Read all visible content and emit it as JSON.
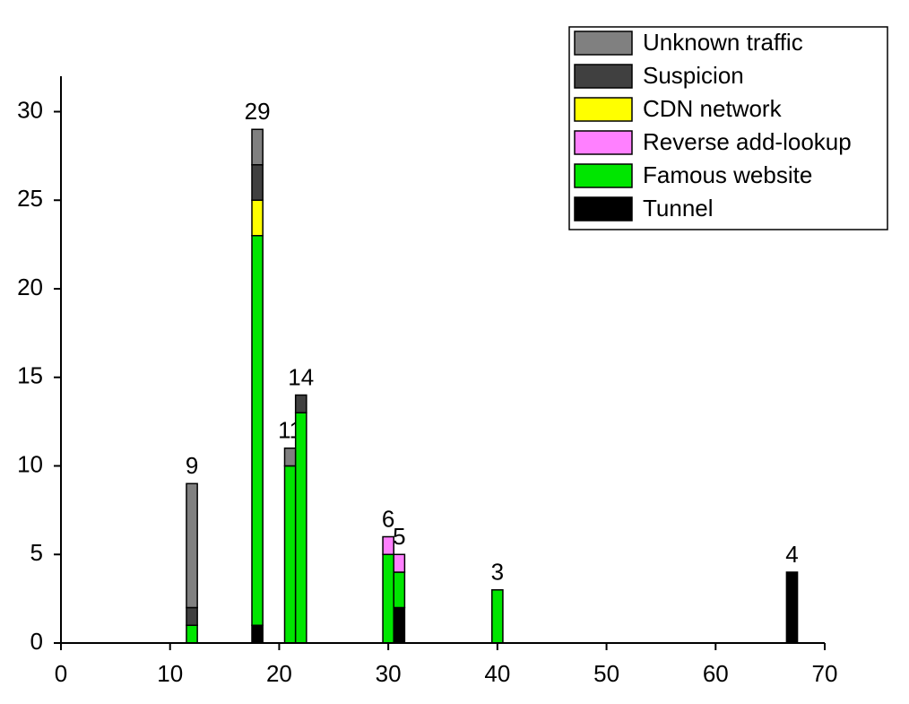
{
  "chart_data": {
    "type": "stacked-bar",
    "x": [
      12,
      18,
      21,
      22,
      30,
      31,
      40,
      67
    ],
    "series": [
      {
        "name": "Tunnel",
        "color": "#000000",
        "values": [
          0,
          1,
          0,
          0,
          0,
          2,
          0,
          4
        ]
      },
      {
        "name": "Famous website",
        "color": "#00e600",
        "values": [
          1,
          22,
          10,
          13,
          5,
          2,
          3,
          0
        ]
      },
      {
        "name": "Reverse add-lookup",
        "color": "#ff80ff",
        "values": [
          0,
          0,
          0,
          0,
          1,
          1,
          0,
          0
        ]
      },
      {
        "name": "CDN network",
        "color": "#ffff00",
        "values": [
          0,
          2,
          0,
          0,
          0,
          0,
          0,
          0
        ]
      },
      {
        "name": "Suspicion",
        "color": "#404040",
        "values": [
          1,
          2,
          0,
          1,
          0,
          0,
          0,
          0
        ]
      },
      {
        "name": "Unknown traffic",
        "color": "#808080",
        "values": [
          7,
          2,
          1,
          0,
          0,
          0,
          0,
          0
        ]
      }
    ],
    "totals": [
      9,
      29,
      11,
      14,
      6,
      5,
      3,
      4
    ],
    "xlim": [
      0,
      70
    ],
    "xticks": [
      0,
      10,
      20,
      30,
      40,
      50,
      60,
      70
    ],
    "ylim": [
      0,
      32
    ],
    "yticks": [
      0,
      5,
      10,
      15,
      20,
      25,
      30
    ],
    "bar_width": 1,
    "legend": "upper right",
    "grid": false
  }
}
